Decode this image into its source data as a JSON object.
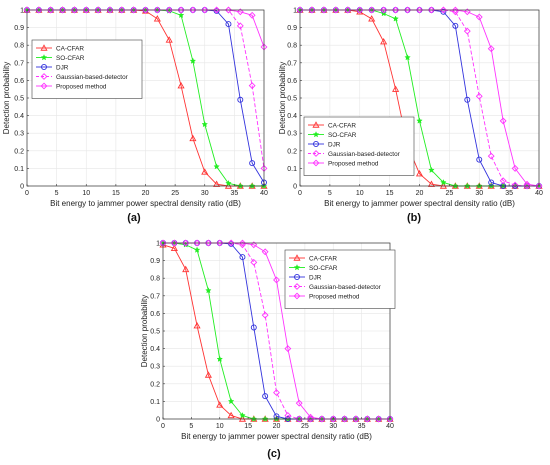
{
  "colors": {
    "ca": "#ff3333",
    "so": "#22ee22",
    "djr": "#3333dd",
    "gauss": "#ff33ff",
    "prop": "#ff33ff",
    "axis": "#333333",
    "grid": "#e6e6e6"
  },
  "chart_data": [
    {
      "type": "line",
      "panel_label": "(a)",
      "xlabel": "Bit energy to jammer power spectral density ratio (dB)",
      "ylabel": "Detection probability",
      "xlim": [
        0,
        40
      ],
      "ylim": [
        0,
        1
      ],
      "xticks": [
        "0",
        "5",
        "10",
        "15",
        "20",
        "25",
        "30",
        "35",
        "40"
      ],
      "yticks": [
        "0",
        "0.1",
        "0.2",
        "0.3",
        "0.4",
        "0.5",
        "0.6",
        "0.7",
        "0.8",
        "0.9",
        "1"
      ],
      "grid": true,
      "legend_position": "top-left",
      "x": [
        0,
        2,
        4,
        6,
        8,
        10,
        12,
        14,
        16,
        18,
        20,
        22,
        24,
        26,
        28,
        30,
        32,
        34,
        36,
        38,
        40
      ],
      "series": [
        {
          "name": "CA-CFAR",
          "color_key": "ca",
          "marker": "triangle",
          "dashed": false,
          "values": [
            1,
            1,
            1,
            1,
            1,
            1,
            1,
            1,
            1,
            1,
            0.995,
            0.95,
            0.83,
            0.57,
            0.27,
            0.08,
            0.01,
            0,
            0,
            0,
            0
          ]
        },
        {
          "name": "SO-CFAR",
          "color_key": "so",
          "marker": "star",
          "dashed": false,
          "values": [
            1,
            1,
            1,
            1,
            1,
            1,
            1,
            1,
            1,
            1,
            1,
            1,
            0.995,
            0.97,
            0.71,
            0.35,
            0.11,
            0.015,
            0,
            0,
            0
          ]
        },
        {
          "name": "DJR",
          "color_key": "djr",
          "marker": "circle",
          "dashed": false,
          "values": [
            1,
            1,
            1,
            1,
            1,
            1,
            1,
            1,
            1,
            1,
            1,
            1,
            1,
            1,
            1,
            1,
            0.995,
            0.92,
            0.49,
            0.13,
            0.02
          ]
        },
        {
          "name": "Gaussian-based-detector",
          "color_key": "gauss",
          "marker": "diamond",
          "dashed": true,
          "values": [
            1,
            1,
            1,
            1,
            1,
            1,
            1,
            1,
            1,
            1,
            1,
            1,
            1,
            1,
            1,
            1,
            1,
            1,
            0.91,
            0.57,
            0.1
          ]
        },
        {
          "name": "Proposed method",
          "color_key": "prop",
          "marker": "diamond",
          "dashed": false,
          "values": [
            1,
            1,
            1,
            1,
            1,
            1,
            1,
            1,
            1,
            1,
            1,
            1,
            1,
            1,
            1,
            1,
            1,
            1,
            0.99,
            0.97,
            0.79
          ]
        }
      ]
    },
    {
      "type": "line",
      "panel_label": "(b)",
      "xlabel": "Bit energy to jammer power spectral density ratio (dB)",
      "ylabel": "Detection probability",
      "xlim": [
        0,
        40
      ],
      "ylim": [
        0,
        1
      ],
      "xticks": [
        "0",
        "5",
        "10",
        "15",
        "20",
        "25",
        "30",
        "35",
        "40"
      ],
      "yticks": [
        "0",
        "0.1",
        "0.2",
        "0.3",
        "0.4",
        "0.5",
        "0.6",
        "0.7",
        "0.8",
        "0.9",
        "1"
      ],
      "grid": true,
      "legend_position": "bottom-left",
      "x": [
        0,
        2,
        4,
        6,
        8,
        10,
        12,
        14,
        16,
        18,
        20,
        22,
        24,
        26,
        28,
        30,
        32,
        34,
        36,
        38,
        40
      ],
      "series": [
        {
          "name": "CA-CFAR",
          "color_key": "ca",
          "marker": "triangle",
          "dashed": false,
          "values": [
            1,
            1,
            1,
            1,
            1,
            0.99,
            0.95,
            0.82,
            0.55,
            0.23,
            0.07,
            0.01,
            0,
            0,
            0,
            0,
            0,
            0,
            0,
            0,
            0
          ]
        },
        {
          "name": "SO-CFAR",
          "color_key": "so",
          "marker": "star",
          "dashed": false,
          "values": [
            1,
            1,
            1,
            1,
            1,
            1,
            1,
            0.98,
            0.95,
            0.73,
            0.37,
            0.09,
            0.02,
            0,
            0,
            0,
            0,
            0,
            0,
            0,
            0
          ]
        },
        {
          "name": "DJR",
          "color_key": "djr",
          "marker": "circle",
          "dashed": false,
          "values": [
            1,
            1,
            1,
            1,
            1,
            1,
            1,
            1,
            1,
            1,
            1,
            1,
            0.99,
            0.91,
            0.49,
            0.15,
            0.02,
            0,
            0,
            0,
            0
          ]
        },
        {
          "name": "Gaussian-based-detector",
          "color_key": "gauss",
          "marker": "diamond",
          "dashed": true,
          "values": [
            1,
            1,
            1,
            1,
            1,
            1,
            1,
            1,
            1,
            1,
            1,
            1,
            1,
            0.99,
            0.88,
            0.51,
            0.17,
            0.03,
            0.005,
            0,
            0
          ]
        },
        {
          "name": "Proposed method",
          "color_key": "prop",
          "marker": "diamond",
          "dashed": false,
          "values": [
            1,
            1,
            1,
            1,
            1,
            1,
            1,
            1,
            1,
            1,
            1,
            1,
            1,
            1,
            0.99,
            0.96,
            0.78,
            0.37,
            0.1,
            0.01,
            0
          ]
        }
      ]
    },
    {
      "type": "line",
      "panel_label": "(c)",
      "xlabel": "Bit energy to jammer power spectral density ratio (dB)",
      "ylabel": "Detection probability",
      "xlim": [
        0,
        40
      ],
      "ylim": [
        0,
        1
      ],
      "xticks": [
        "0",
        "5",
        "10",
        "15",
        "20",
        "25",
        "30",
        "35",
        "40"
      ],
      "yticks": [
        "0",
        "0.1",
        "0.2",
        "0.3",
        "0.4",
        "0.5",
        "0.6",
        "0.7",
        "0.8",
        "0.9",
        "1"
      ],
      "grid": true,
      "legend_position": "top-right",
      "x": [
        0,
        2,
        4,
        6,
        8,
        10,
        12,
        14,
        16,
        18,
        20,
        22,
        24,
        26,
        28,
        30,
        32,
        34,
        36,
        38,
        40
      ],
      "series": [
        {
          "name": "CA-CFAR",
          "color_key": "ca",
          "marker": "triangle",
          "dashed": false,
          "values": [
            0.99,
            0.97,
            0.85,
            0.53,
            0.25,
            0.08,
            0.02,
            0,
            0,
            0,
            0,
            0,
            0,
            0,
            0,
            0,
            0,
            0,
            0,
            0,
            0
          ]
        },
        {
          "name": "SO-CFAR",
          "color_key": "so",
          "marker": "star",
          "dashed": false,
          "values": [
            1,
            1,
            0.99,
            0.96,
            0.73,
            0.34,
            0.1,
            0.02,
            0,
            0,
            0,
            0,
            0,
            0,
            0,
            0,
            0,
            0,
            0,
            0,
            0
          ]
        },
        {
          "name": "DJR",
          "color_key": "djr",
          "marker": "circle",
          "dashed": false,
          "values": [
            1,
            1,
            1,
            1,
            1,
            1,
            0.995,
            0.92,
            0.52,
            0.13,
            0.015,
            0,
            0,
            0,
            0,
            0,
            0,
            0,
            0,
            0,
            0
          ]
        },
        {
          "name": "Gaussian-based-detector",
          "color_key": "gauss",
          "marker": "diamond",
          "dashed": true,
          "values": [
            1,
            1,
            1,
            1,
            1,
            1,
            1,
            0.99,
            0.89,
            0.59,
            0.15,
            0.02,
            0,
            0,
            0,
            0,
            0,
            0,
            0,
            0,
            0
          ]
        },
        {
          "name": "Proposed method",
          "color_key": "prop",
          "marker": "diamond",
          "dashed": false,
          "values": [
            1,
            1,
            1,
            1,
            1,
            1,
            1,
            1,
            0.99,
            0.95,
            0.79,
            0.4,
            0.09,
            0.01,
            0,
            0,
            0,
            0,
            0,
            0,
            0
          ]
        }
      ]
    }
  ]
}
